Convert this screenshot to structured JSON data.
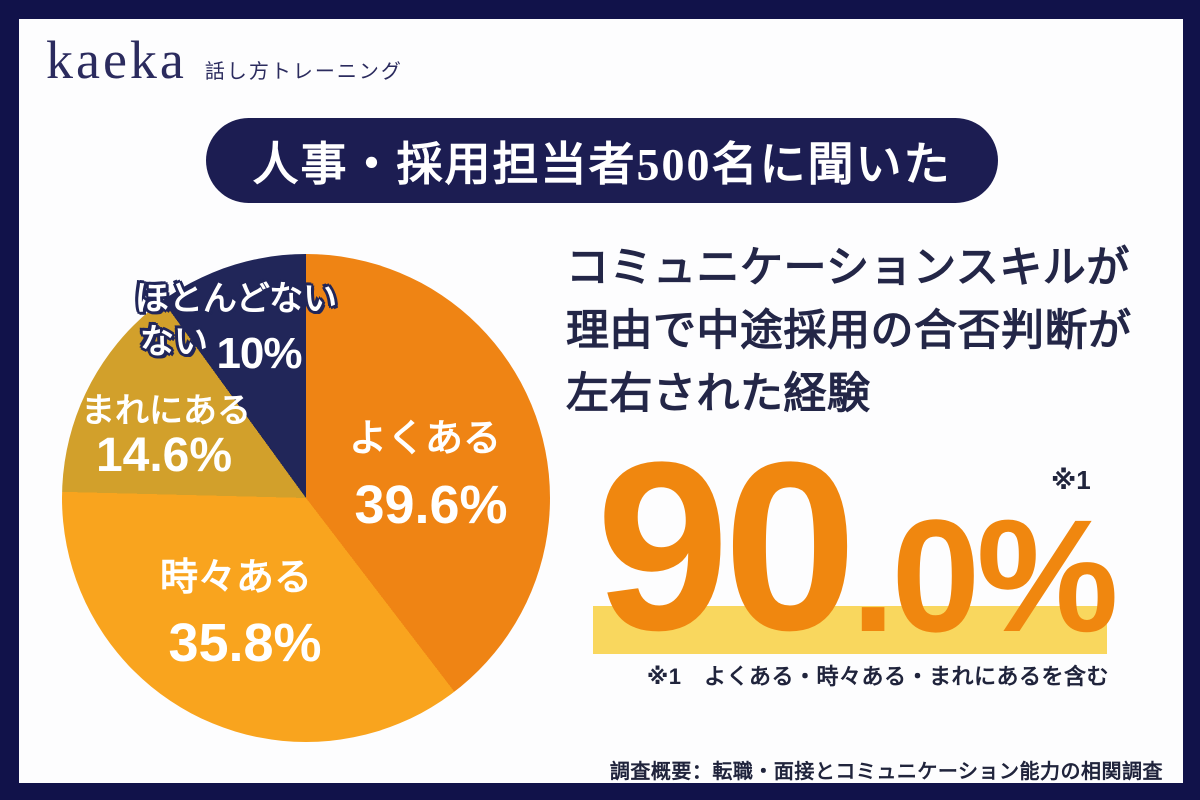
{
  "brand": {
    "logo_text": "kaeka",
    "logo_tagline": "話し方トレーニング"
  },
  "banner": {
    "text": "人事・採用担当者500名に聞いた"
  },
  "headline": {
    "line1": "コミュニケーションスキルが",
    "line2": "理由で中途採用の合否判断が",
    "line3": "左右された経験"
  },
  "stat": {
    "value_main": "90",
    "value_decimal": ".0%",
    "footnote_mark": "※1",
    "footnote_text": "※1　よくある・時々ある・まれにあるを含む"
  },
  "survey_note": "調査概要：転職・面接とコミュニケーション能力の相関調査",
  "colors": {
    "page_background": "#11124a",
    "card_background": "#fdfdfe",
    "banner_navy": "#1c1d52",
    "headline_navy": "#232647",
    "stat_orange": "#f0870f",
    "highlight_yellow": "#f9d75e",
    "logo_navy": "#2b2b5e"
  },
  "chart_data": {
    "type": "pie",
    "title": "コミュニケーションスキルが理由で中途採用の合否判断が左右された経験（人事・採用担当者500名）",
    "start_angle_deg": 0,
    "direction": "clockwise",
    "segments": [
      {
        "label": "よくある",
        "value": 39.6,
        "value_label": "39.6%",
        "color": "#EF8414"
      },
      {
        "label": "時々ある",
        "value": 35.8,
        "value_label": "35.8%",
        "color": "#F9A41E"
      },
      {
        "label": "まれにある",
        "value": 14.6,
        "value_label": "14.6%",
        "color": "#D2A02B"
      },
      {
        "label": "ほとんどない",
        "label_line2": "ない",
        "value": 10.0,
        "value_label": "10%",
        "color": "#212659"
      }
    ],
    "legend_position": "on-slice",
    "summary_value": "90.0%",
    "summary_note": "よくある・時々ある・まれにあるを含む"
  }
}
